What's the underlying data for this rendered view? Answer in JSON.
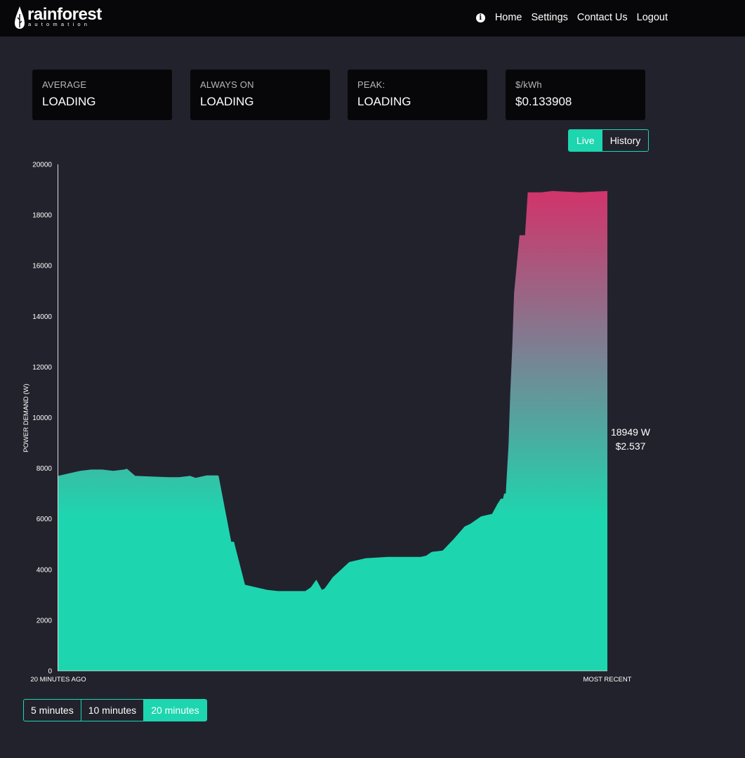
{
  "brand": {
    "name": "rainforest",
    "tagline": "automation"
  },
  "nav": {
    "home": "Home",
    "settings": "Settings",
    "contact": "Contact Us",
    "logout": "Logout"
  },
  "cards": {
    "average": {
      "label": "AVERAGE",
      "value": "LOADING"
    },
    "always_on": {
      "label": "ALWAYS ON",
      "value": "LOADING"
    },
    "peak": {
      "label": "PEAK:",
      "value": "LOADING"
    },
    "price": {
      "label": "$/kWh",
      "value": "$0.133908"
    }
  },
  "view_toggle": {
    "live": "Live",
    "history": "History",
    "selected": "Live"
  },
  "readout": {
    "power": "18949 W",
    "cost": "$2.537"
  },
  "range": {
    "five": "5 minutes",
    "ten": "10 minutes",
    "twenty": "20 minutes",
    "selected": "20 minutes"
  },
  "colors": {
    "accent": "#1dd6af",
    "peak": "#d2336a",
    "background": "#22222d",
    "bar": "#070709"
  },
  "chart_data": {
    "type": "area",
    "ylabel": "POWER DEMAND (W)",
    "x_start_label": "20 MINUTES AGO",
    "x_end_label": "MOST RECENT",
    "ylim": [
      0,
      20000
    ],
    "yticks": [
      0,
      2000,
      4000,
      6000,
      8000,
      10000,
      12000,
      14000,
      16000,
      18000,
      20000
    ],
    "x": [
      0,
      0.02,
      0.04,
      0.06,
      0.08,
      0.1,
      0.12,
      0.125,
      0.14,
      0.2,
      0.22,
      0.24,
      0.25,
      0.27,
      0.29,
      0.292,
      0.315,
      0.318,
      0.32,
      0.34,
      0.36,
      0.38,
      0.4,
      0.42,
      0.44,
      0.45,
      0.46,
      0.47,
      0.48,
      0.485,
      0.49,
      0.5,
      0.53,
      0.56,
      0.6,
      0.63,
      0.66,
      0.67,
      0.68,
      0.7,
      0.72,
      0.74,
      0.75,
      0.77,
      0.79,
      0.8,
      0.806,
      0.81,
      0.812,
      0.815,
      0.82,
      0.823,
      0.827,
      0.83,
      0.84,
      0.845,
      0.85,
      0.855,
      0.86,
      0.88,
      0.9,
      0.95,
      1.0
    ],
    "values": [
      7700,
      7800,
      7900,
      7950,
      7950,
      7900,
      7950,
      7980,
      7700,
      7650,
      7650,
      7700,
      7620,
      7720,
      7720,
      7700,
      5100,
      5100,
      5100,
      3400,
      3300,
      3200,
      3150,
      3150,
      3150,
      3150,
      3300,
      3600,
      3200,
      3250,
      3400,
      3700,
      4300,
      4450,
      4500,
      4500,
      4500,
      4550,
      4700,
      4750,
      5200,
      5700,
      5800,
      6100,
      6200,
      6600,
      6800,
      6800,
      7000,
      7000,
      8900,
      10900,
      12900,
      14900,
      17200,
      17200,
      17200,
      18900,
      18900,
      18900,
      18950,
      18900,
      18949
    ]
  }
}
